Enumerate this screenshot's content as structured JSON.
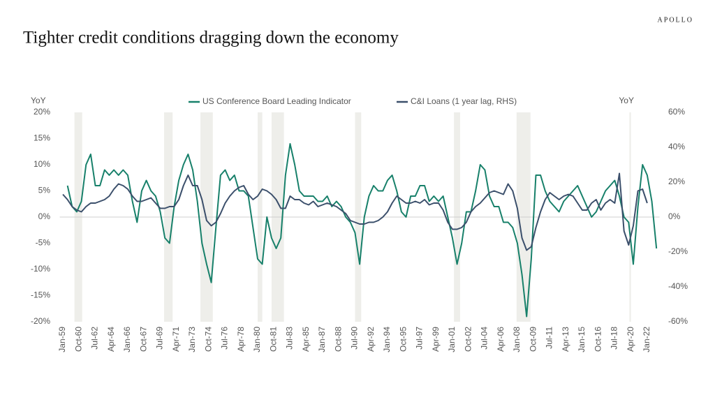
{
  "brand": "APOLLO",
  "chart_data": {
    "type": "line",
    "title": "Tighter credit conditions dragging down the economy",
    "y_label": "YoY",
    "y2_label": "YoY",
    "xlim": [
      "1958-09",
      "2023-05"
    ],
    "xticks": [
      {
        "value": "1959-01",
        "label": "Jan-59"
      },
      {
        "value": "1960-10",
        "label": "Oct-60"
      },
      {
        "value": "1962-07",
        "label": "Jul-62"
      },
      {
        "value": "1964-04",
        "label": "Apr-64"
      },
      {
        "value": "1966-01",
        "label": "Jan-66"
      },
      {
        "value": "1967-10",
        "label": "Oct-67"
      },
      {
        "value": "1969-07",
        "label": "Jul-69"
      },
      {
        "value": "1971-04",
        "label": "Apr-71"
      },
      {
        "value": "1973-01",
        "label": "Jan-73"
      },
      {
        "value": "1974-10",
        "label": "Oct-74"
      },
      {
        "value": "1976-07",
        "label": "Jul-76"
      },
      {
        "value": "1978-04",
        "label": "Apr-78"
      },
      {
        "value": "1980-01",
        "label": "Jan-80"
      },
      {
        "value": "1981-10",
        "label": "Oct-81"
      },
      {
        "value": "1983-07",
        "label": "Jul-83"
      },
      {
        "value": "1985-04",
        "label": "Apr-85"
      },
      {
        "value": "1987-01",
        "label": "Jan-87"
      },
      {
        "value": "1988-10",
        "label": "Oct-88"
      },
      {
        "value": "1990-07",
        "label": "Jul-90"
      },
      {
        "value": "1992-04",
        "label": "Apr-92"
      },
      {
        "value": "1994-01",
        "label": "Jan-94"
      },
      {
        "value": "1995-10",
        "label": "Oct-95"
      },
      {
        "value": "1997-07",
        "label": "Jul-97"
      },
      {
        "value": "1999-04",
        "label": "Apr-99"
      },
      {
        "value": "2001-01",
        "label": "Jan-01"
      },
      {
        "value": "2002-10",
        "label": "Oct-02"
      },
      {
        "value": "2004-07",
        "label": "Jul-04"
      },
      {
        "value": "2006-04",
        "label": "Apr-06"
      },
      {
        "value": "2008-01",
        "label": "Jan-08"
      },
      {
        "value": "2009-10",
        "label": "Oct-09"
      },
      {
        "value": "2011-07",
        "label": "Jul-11"
      },
      {
        "value": "2013-04",
        "label": "Apr-13"
      },
      {
        "value": "2015-01",
        "label": "Jan-15"
      },
      {
        "value": "2016-10",
        "label": "Oct-16"
      },
      {
        "value": "2018-07",
        "label": "Jul-18"
      },
      {
        "value": "2020-04",
        "label": "Apr-20"
      },
      {
        "value": "2022-01",
        "label": "Jan-22"
      }
    ],
    "ylim": [
      -20,
      20
    ],
    "yticks": [
      {
        "value": 20,
        "label": "20%"
      },
      {
        "value": 15,
        "label": "15%"
      },
      {
        "value": 10,
        "label": "10%"
      },
      {
        "value": 5,
        "label": "5%"
      },
      {
        "value": 0,
        "label": "0%"
      },
      {
        "value": -5,
        "label": "-5%"
      },
      {
        "value": -10,
        "label": "-10%"
      },
      {
        "value": -15,
        "label": "-15%"
      },
      {
        "value": -20,
        "label": "-20%"
      }
    ],
    "y2lim": [
      -60,
      60
    ],
    "y2ticks": [
      {
        "value": 60,
        "label": "60%"
      },
      {
        "value": 40,
        "label": "40%"
      },
      {
        "value": 20,
        "label": "20%"
      },
      {
        "value": 0,
        "label": "0%"
      },
      {
        "value": -20,
        "label": "-20%"
      },
      {
        "value": -40,
        "label": "-40%"
      },
      {
        "value": -60,
        "label": "-60%"
      }
    ],
    "shaded_periods": [
      [
        "1960-04",
        "1961-02"
      ],
      [
        "1969-12",
        "1970-11"
      ],
      [
        "1973-11",
        "1975-03"
      ],
      [
        "1980-01",
        "1980-07"
      ],
      [
        "1981-07",
        "1982-11"
      ],
      [
        "1990-07",
        "1991-03"
      ],
      [
        "2001-03",
        "2001-11"
      ],
      [
        "2007-12",
        "2009-06"
      ],
      [
        "2020-02",
        "2020-04"
      ]
    ],
    "shade_color": "#eeeeea",
    "x": [
      "1959-01",
      "1959-07",
      "1960-01",
      "1960-07",
      "1961-01",
      "1961-07",
      "1962-01",
      "1962-07",
      "1963-01",
      "1963-07",
      "1964-01",
      "1964-07",
      "1965-01",
      "1965-07",
      "1966-01",
      "1966-07",
      "1967-01",
      "1967-07",
      "1968-01",
      "1968-07",
      "1969-01",
      "1969-07",
      "1970-01",
      "1970-07",
      "1971-01",
      "1971-07",
      "1972-01",
      "1972-07",
      "1973-01",
      "1973-07",
      "1974-01",
      "1974-07",
      "1975-01",
      "1975-07",
      "1976-01",
      "1976-07",
      "1977-01",
      "1977-07",
      "1978-01",
      "1978-07",
      "1979-01",
      "1979-07",
      "1980-01",
      "1980-07",
      "1981-01",
      "1981-07",
      "1982-01",
      "1982-07",
      "1983-01",
      "1983-07",
      "1984-01",
      "1984-07",
      "1985-01",
      "1985-07",
      "1986-01",
      "1986-07",
      "1987-01",
      "1987-07",
      "1988-01",
      "1988-07",
      "1989-01",
      "1989-07",
      "1990-01",
      "1990-07",
      "1991-01",
      "1991-07",
      "1992-01",
      "1992-07",
      "1993-01",
      "1993-07",
      "1994-01",
      "1994-07",
      "1995-01",
      "1995-07",
      "1996-01",
      "1996-07",
      "1997-01",
      "1997-07",
      "1998-01",
      "1998-07",
      "1999-01",
      "1999-07",
      "2000-01",
      "2000-07",
      "2001-01",
      "2001-07",
      "2002-01",
      "2002-07",
      "2003-01",
      "2003-07",
      "2004-01",
      "2004-07",
      "2005-01",
      "2005-07",
      "2006-01",
      "2006-07",
      "2007-01",
      "2007-07",
      "2008-01",
      "2008-07",
      "2009-01",
      "2009-07",
      "2010-01",
      "2010-07",
      "2011-01",
      "2011-07",
      "2012-01",
      "2012-07",
      "2013-01",
      "2013-07",
      "2014-01",
      "2014-07",
      "2015-01",
      "2015-07",
      "2016-01",
      "2016-07",
      "2017-01",
      "2017-07",
      "2018-01",
      "2018-07",
      "2019-01",
      "2019-07",
      "2020-01",
      "2020-07",
      "2021-01",
      "2021-07",
      "2022-01",
      "2022-07",
      "2023-01"
    ],
    "series": [
      {
        "name": "US Conference Board Leading Indicator",
        "color": "#17806a",
        "axis": "y",
        "values": [
          null,
          6,
          2,
          1,
          3,
          10,
          12,
          6,
          6,
          9,
          8,
          9,
          8,
          9,
          8,
          3,
          -1,
          5,
          7,
          5,
          4,
          1,
          -4,
          -5,
          2,
          7,
          10,
          12,
          9,
          3,
          -5,
          -9,
          -12.5,
          -2,
          8,
          9,
          7,
          8,
          5,
          5,
          4,
          -2,
          -8,
          -9,
          0,
          -4,
          -6,
          -4,
          8,
          14,
          10,
          5,
          4,
          4,
          4,
          3,
          3,
          4,
          2,
          3,
          2,
          0,
          -1,
          -3,
          -9,
          0,
          4,
          6,
          5,
          5,
          7,
          8,
          5,
          1,
          0,
          4,
          4,
          6,
          6,
          3,
          4,
          3,
          4,
          0,
          -4,
          -9,
          -5,
          1,
          1,
          5,
          10,
          9,
          4,
          2,
          2,
          -1,
          -1,
          -2,
          -5,
          -11,
          -19,
          -8,
          8,
          8,
          5,
          3,
          2,
          1,
          3,
          4,
          5,
          6,
          4,
          2,
          0,
          1,
          3,
          5,
          6,
          7,
          4,
          0,
          -1,
          -9,
          2,
          10,
          8,
          3,
          -6
        ]
      },
      {
        "name": "C&I Loans (1 year lag, RHS)",
        "color": "#3b4f6b",
        "axis": "y2",
        "values": [
          13,
          10,
          6,
          4,
          3,
          6,
          8,
          8,
          9,
          10,
          12,
          16,
          19,
          18,
          16,
          12,
          9,
          9,
          10,
          11,
          8,
          5,
          5,
          6,
          6,
          10,
          18,
          24,
          18,
          18,
          10,
          -2,
          -5,
          -3,
          2,
          8,
          12,
          15,
          17,
          18,
          13,
          10,
          12,
          16,
          15,
          13,
          10,
          5,
          5,
          12,
          10,
          10,
          8,
          7,
          9,
          6,
          7,
          8,
          7,
          6,
          4,
          2,
          -2,
          -3,
          -4,
          -4,
          -3,
          -3,
          -2,
          0,
          3,
          8,
          12,
          10,
          8,
          8,
          9,
          8,
          10,
          7,
          8,
          8,
          4,
          -3,
          -7,
          -7,
          -6,
          -3,
          3,
          6,
          8,
          11,
          14,
          15,
          14,
          13,
          19,
          15,
          5,
          -12,
          -19,
          -17,
          -6,
          3,
          10,
          14,
          12,
          10,
          12,
          13,
          12,
          8,
          4,
          4,
          8,
          10,
          4,
          8,
          10,
          8,
          25,
          -8,
          -16,
          -5,
          15,
          16,
          8,
          null,
          null
        ]
      }
    ]
  }
}
